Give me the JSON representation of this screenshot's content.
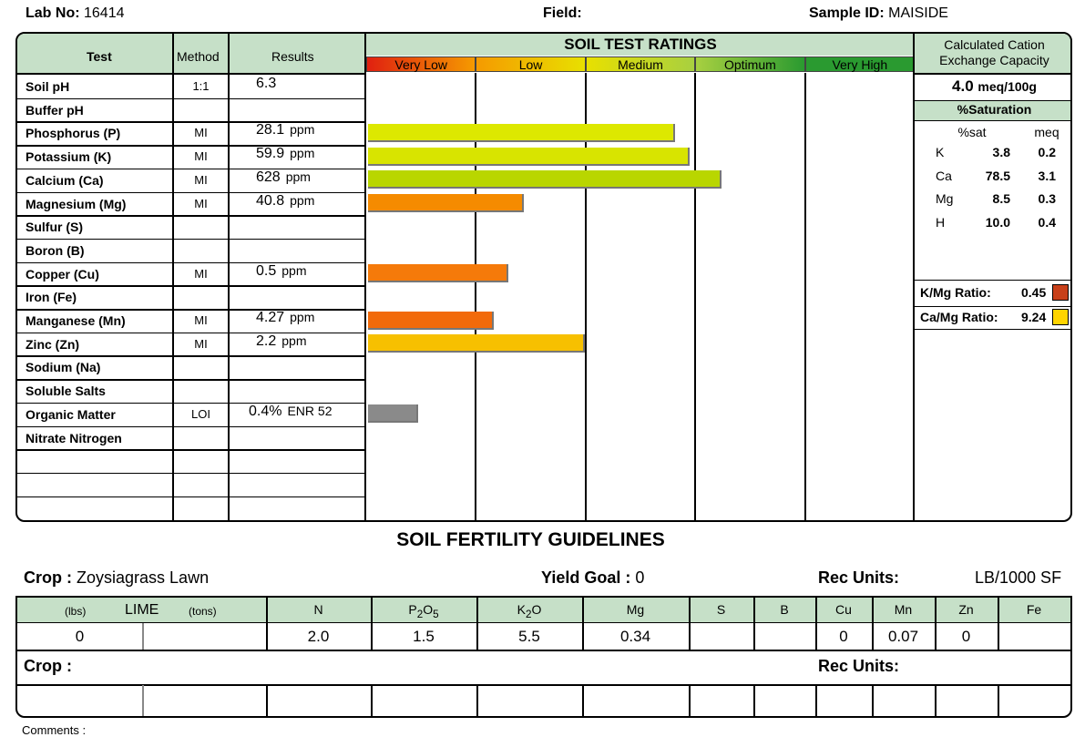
{
  "header": {
    "lab_no_label": "Lab No:",
    "lab_no": "16414",
    "field_label": "Field:",
    "sample_id_label": "Sample ID:",
    "sample_id": "MAISIDE"
  },
  "table_headers": {
    "test": "Test",
    "method": "Method",
    "results": "Results"
  },
  "ratings": {
    "title": "SOIL TEST RATINGS",
    "scale": [
      "Very Low",
      "Low",
      "Medium",
      "Optimum",
      "Very High"
    ],
    "scale_colors": [
      "#e02010",
      "#f59a00",
      "#e8e000",
      "#a8d040",
      "#2a9a30"
    ]
  },
  "rows": [
    {
      "test": "Soil pH",
      "method": "1:1",
      "result": "6.3",
      "unit": ""
    },
    {
      "test": "Buffer pH",
      "method": "",
      "result": "",
      "unit": ""
    },
    {
      "test": "Phosphorus (P)",
      "method": "MI",
      "result": "28.1",
      "unit": "ppm"
    },
    {
      "test": "Potassium (K)",
      "method": "MI",
      "result": "59.9",
      "unit": "ppm"
    },
    {
      "test": "Calcium (Ca)",
      "method": "MI",
      "result": "628",
      "unit": "ppm"
    },
    {
      "test": "Magnesium (Mg)",
      "method": "MI",
      "result": "40.8",
      "unit": "ppm"
    },
    {
      "test": "Sulfur (S)",
      "method": "",
      "result": "",
      "unit": ""
    },
    {
      "test": "Boron (B)",
      "method": "",
      "result": "",
      "unit": ""
    },
    {
      "test": "Copper (Cu)",
      "method": "MI",
      "result": "0.5",
      "unit": "ppm"
    },
    {
      "test": "Iron (Fe)",
      "method": "",
      "result": "",
      "unit": ""
    },
    {
      "test": "Manganese (Mn)",
      "method": "MI",
      "result": "4.27",
      "unit": "ppm"
    },
    {
      "test": "Zinc (Zn)",
      "method": "MI",
      "result": "2.2",
      "unit": "ppm"
    },
    {
      "test": "Sodium (Na)",
      "method": "",
      "result": "",
      "unit": ""
    },
    {
      "test": "Soluble Salts",
      "method": "",
      "result": "",
      "unit": ""
    },
    {
      "test": "Organic Matter",
      "method": "LOI",
      "result": "0.4%",
      "unit": "ENR  52"
    },
    {
      "test": "Nitrate Nitrogen",
      "method": "",
      "result": "",
      "unit": ""
    },
    {
      "test": "",
      "method": "",
      "result": "",
      "unit": ""
    },
    {
      "test": "",
      "method": "",
      "result": "",
      "unit": ""
    },
    {
      "test": "",
      "method": "",
      "result": "",
      "unit": ""
    }
  ],
  "rating_bars": [
    {
      "row": 2,
      "level": 2.8,
      "color": "#dde800"
    },
    {
      "row": 3,
      "level": 2.93,
      "color": "#d8e400"
    },
    {
      "row": 4,
      "level": 3.22,
      "color": "#b9d600"
    },
    {
      "row": 5,
      "level": 1.42,
      "color": "#f58b00"
    },
    {
      "row": 8,
      "level": 1.28,
      "color": "#f57a0a"
    },
    {
      "row": 10,
      "level": 1.15,
      "color": "#f26a0a"
    },
    {
      "row": 11,
      "level": 1.98,
      "color": "#f7c000"
    },
    {
      "row": 14,
      "level": 0.46,
      "color": "#8a8a8a"
    }
  ],
  "cec": {
    "title_line1": "Calculated Cation",
    "title_line2": "Exchange Capacity",
    "value": "4.0",
    "unit": "meq/100g",
    "saturation_title": "%Saturation",
    "col_sat": "%sat",
    "col_meq": "meq",
    "items": [
      {
        "el": "K",
        "sat": "3.8",
        "meq": "0.2"
      },
      {
        "el": "Ca",
        "sat": "78.5",
        "meq": "3.1"
      },
      {
        "el": "Mg",
        "sat": "8.5",
        "meq": "0.3"
      },
      {
        "el": "H",
        "sat": "10.0",
        "meq": "0.4"
      }
    ],
    "km_label": "K/Mg Ratio:",
    "km_value": "0.45",
    "km_color": "#c8401a",
    "camg_label": "Ca/Mg Ratio:",
    "camg_value": "9.24",
    "camg_color": "#ffd400"
  },
  "guidelines": {
    "title": "SOIL FERTILITY GUIDELINES",
    "crop_label": "Crop :",
    "crop": "Zoysiagrass Lawn",
    "yield_label": "Yield Goal :",
    "yield_value": "0",
    "rec_units_label": "Rec Units:",
    "rec_units": "LB/1000 SF",
    "headers": {
      "lbs": "(lbs)",
      "lime": "LIME",
      "tons": "(tons)",
      "n": "N",
      "p": "P",
      "p_sub": "2",
      "o5": "O",
      "o5_sub": "5",
      "k": "K",
      "k_sub": "2",
      "ko": "O",
      "mg": "Mg",
      "s": "S",
      "b": "B",
      "cu": "Cu",
      "mn": "Mn",
      "zn": "Zn",
      "fe": "Fe"
    },
    "values": {
      "lime_lbs": "0",
      "lime_tons": "",
      "n": "2.0",
      "p2o5": "1.5",
      "k2o": "5.5",
      "mg": "0.34",
      "s": "",
      "b": "",
      "cu": "0",
      "mn": "0.07",
      "zn": "0",
      "fe": ""
    },
    "crop2_label": "Crop :",
    "rec_units2_label": "Rec Units:",
    "comments_label": "Comments :"
  }
}
